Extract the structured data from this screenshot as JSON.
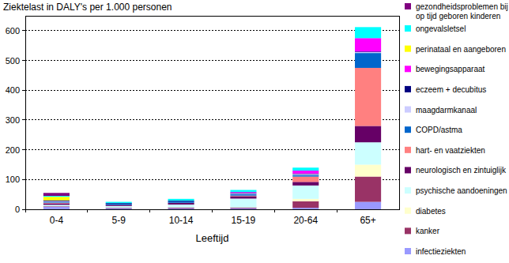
{
  "chart_data": {
    "type": "bar",
    "stacked": true,
    "grid": true,
    "legend": "right",
    "title": "Ziektelast in DALY's per 1.000 personen",
    "x_label": "Leeftijd",
    "categories": [
      "0-4",
      "5-9",
      "10-14",
      "15-19",
      "20-64",
      "65+"
    ],
    "ylim": [
      0,
      650
    ],
    "yticks": [
      0,
      100,
      200,
      300,
      400,
      500,
      600
    ],
    "series": [
      {
        "name": "infectieziekten",
        "color": "#9999ff",
        "values": [
          8,
          3,
          3,
          3,
          5,
          25
        ]
      },
      {
        "name": "kanker",
        "color": "#993366",
        "values": [
          2,
          2,
          3,
          3,
          22,
          85
        ]
      },
      {
        "name": "diabetes",
        "color": "#ffffcc",
        "values": [
          0,
          0,
          0,
          0,
          8,
          40
        ]
      },
      {
        "name": "psychische aandoeningen",
        "color": "#ccffff",
        "values": [
          5,
          6,
          10,
          30,
          45,
          75
        ]
      },
      {
        "name": "neurologisch en zintuiglijk",
        "color": "#660066",
        "values": [
          5,
          4,
          6,
          8,
          12,
          55
        ]
      },
      {
        "name": "hart- en vaatziekten",
        "color": "#ff8080",
        "values": [
          2,
          0,
          0,
          2,
          18,
          195
        ]
      },
      {
        "name": "COPD/astma",
        "color": "#0066cc",
        "values": [
          3,
          4,
          5,
          5,
          5,
          50
        ]
      },
      {
        "name": "maagdarmkanaal",
        "color": "#ccccff",
        "values": [
          2,
          0,
          0,
          2,
          3,
          3
        ]
      },
      {
        "name": "eczeem + decubitus",
        "color": "#000080",
        "values": [
          3,
          2,
          2,
          2,
          2,
          2
        ]
      },
      {
        "name": "bewegingsapparaat",
        "color": "#ff00ff",
        "values": [
          0,
          0,
          0,
          3,
          10,
          45
        ]
      },
      {
        "name": "perinataal en aangeboren",
        "color": "#ffff00",
        "values": [
          12,
          0,
          0,
          0,
          0,
          0
        ]
      },
      {
        "name": "ongevalsletsel",
        "color": "#00ffff",
        "values": [
          3,
          4,
          6,
          7,
          10,
          37
        ]
      },
      {
        "name": "gezondheidsproblemen bij op tijd geboren kinderen",
        "color": "#800080",
        "values": [
          10,
          0,
          0,
          0,
          0,
          0
        ]
      }
    ]
  }
}
